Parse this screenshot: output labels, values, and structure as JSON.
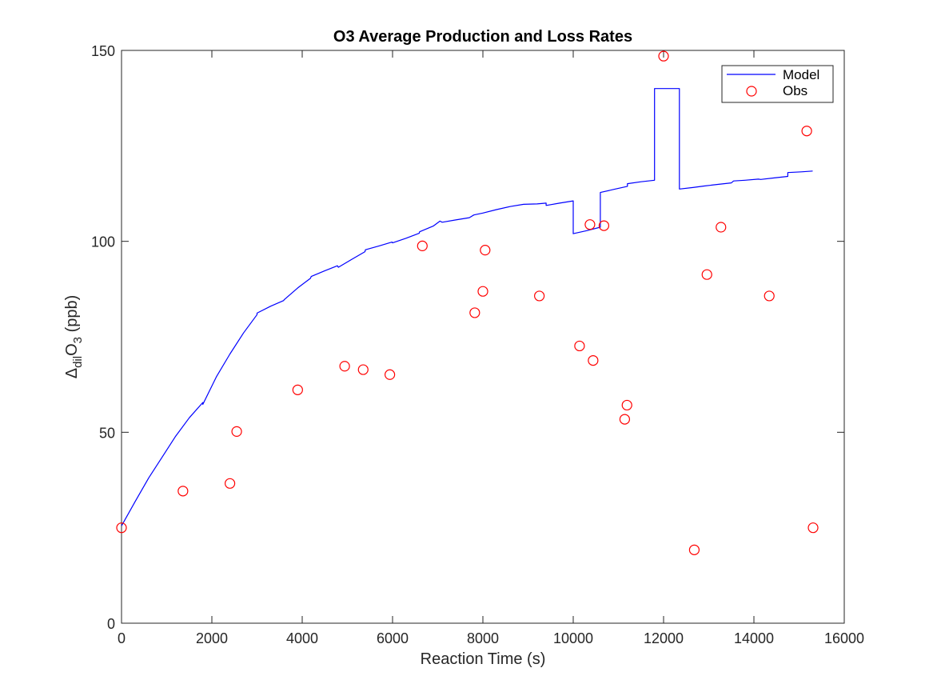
{
  "chart_data": {
    "type": "line",
    "title": "O3 Average Production and Loss Rates",
    "xlabel": "Reaction Time (s)",
    "ylabel": {
      "base": "Δ",
      "base_sub": "dil",
      "main": "O",
      "main_sub": "3",
      "unit": " (ppb)"
    },
    "xlim": [
      0,
      16000
    ],
    "ylim": [
      0,
      150
    ],
    "xticks": [
      0,
      2000,
      4000,
      6000,
      8000,
      10000,
      12000,
      14000,
      16000
    ],
    "yticks": [
      0,
      50,
      100,
      150
    ],
    "grid": false,
    "legend_position": "top-right",
    "colors": {
      "model": "#0000ff",
      "obs": "#ff0000",
      "axis": "#262626"
    },
    "series": [
      {
        "name": "Model",
        "style": "line",
        "x": [
          0,
          300,
          600,
          900,
          1200,
          1500,
          1800,
          1800,
          2100,
          2400,
          2700,
          3000,
          3000,
          3300,
          3590,
          3600,
          3900,
          4180,
          4200,
          4500,
          4780,
          4800,
          5100,
          5390,
          5400,
          5700,
          5990,
          6000,
          6300,
          6590,
          6600,
          6900,
          7050,
          7100,
          7400,
          7700,
          7800,
          8000,
          8300,
          8600,
          8900,
          9200,
          9400,
          9400,
          9700,
          10000,
          10000,
          10300,
          10600,
          10600,
          10900,
          11200,
          11200,
          11500,
          11800,
          11800,
          12350,
          12350,
          12650,
          12900,
          13200,
          13500,
          13550,
          13800,
          14100,
          14150,
          14450,
          14750,
          14750,
          15050,
          15300
        ],
        "y": [
          25.5,
          31.8,
          38.0,
          43.5,
          49.0,
          53.8,
          57.8,
          57.3,
          64.5,
          70.5,
          76.0,
          80.8,
          81.2,
          83.0,
          84.5,
          84.7,
          87.8,
          90.3,
          90.8,
          92.3,
          93.6,
          93.2,
          95.3,
          97.3,
          97.8,
          98.8,
          99.8,
          99.6,
          100.8,
          102.1,
          102.5,
          104.0,
          105.3,
          105.0,
          105.6,
          106.2,
          106.9,
          107.4,
          108.3,
          109.1,
          109.7,
          109.8,
          110.0,
          109.4,
          110.0,
          110.6,
          102.0,
          102.8,
          103.7,
          112.8,
          113.6,
          114.4,
          115.1,
          115.6,
          116.0,
          140.0,
          140.0,
          113.7,
          114.1,
          114.5,
          114.9,
          115.3,
          115.8,
          116.0,
          116.3,
          116.2,
          116.6,
          117.0,
          118.0,
          118.2,
          118.4
        ]
      },
      {
        "name": "Obs",
        "style": "markers",
        "x": [
          0,
          1360,
          2400,
          2550,
          3900,
          4940,
          5350,
          5940,
          6660,
          7820,
          8000,
          8050,
          9250,
          10140,
          10370,
          10440,
          10680,
          11140,
          11190,
          12000,
          12680,
          12960,
          13270,
          14340,
          15170,
          15310
        ],
        "y": [
          25,
          34.6,
          36.6,
          50.2,
          61.1,
          67.3,
          66.4,
          65.1,
          98.8,
          81.3,
          86.9,
          97.7,
          85.7,
          72.6,
          104.4,
          68.8,
          104.1,
          53.4,
          57.1,
          148.5,
          19.2,
          91.3,
          103.7,
          85.7,
          128.9,
          25
        ]
      }
    ]
  }
}
